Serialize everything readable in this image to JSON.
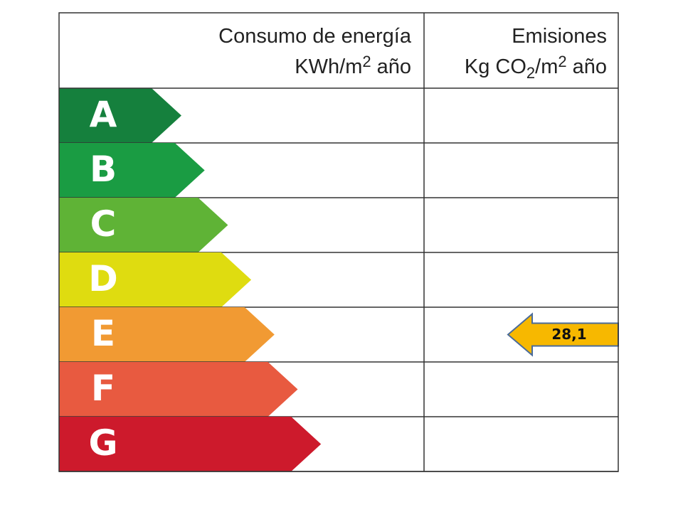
{
  "header": {
    "energy": {
      "title": "Consumo de energía",
      "unit": [
        "KWh/m",
        "2",
        "año"
      ]
    },
    "emissions": {
      "title": "Emisiones",
      "unit": [
        "Kg CO",
        "2",
        "/m",
        "2",
        "año"
      ]
    }
  },
  "rows": [
    {
      "label": "A",
      "color": "#15803d"
    },
    {
      "label": "B",
      "color": "#1a9c43"
    },
    {
      "label": "C",
      "color": "#5fb336"
    },
    {
      "label": "D",
      "color": "#dfdc10"
    },
    {
      "label": "E",
      "color": "#f19a33"
    },
    {
      "label": "F",
      "color": "#e85a40"
    },
    {
      "label": "G",
      "color": "#cd1a2c"
    }
  ],
  "indicator": {
    "row": "E",
    "value": "28,1",
    "color": "#f7b800"
  }
}
